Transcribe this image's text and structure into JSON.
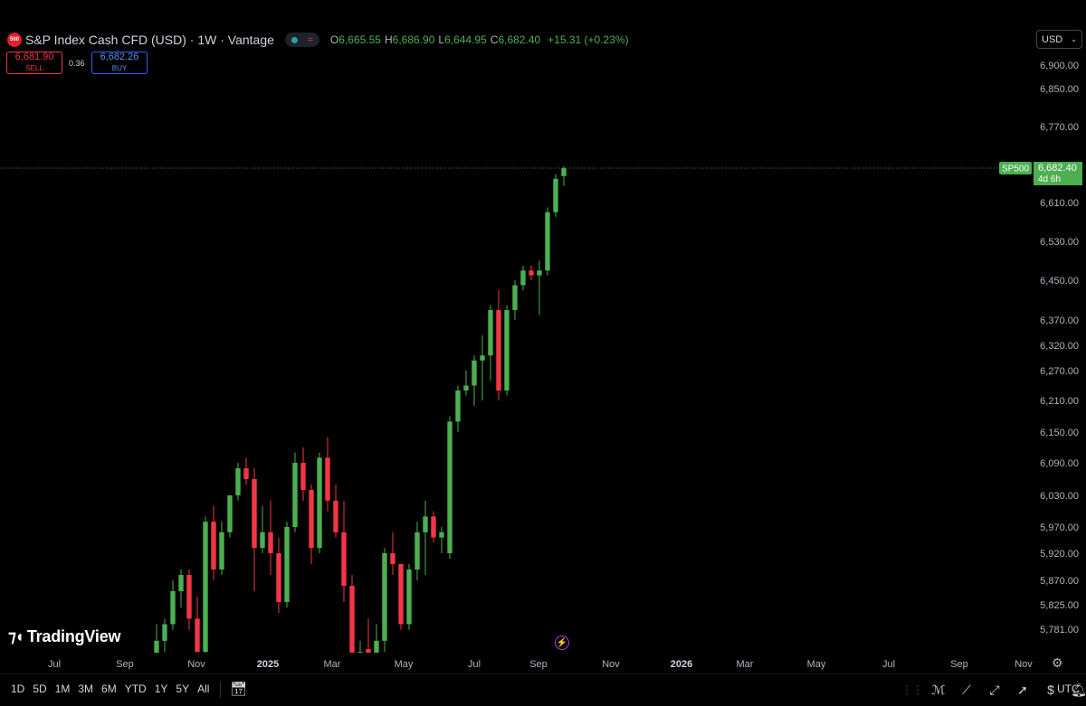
{
  "header": {
    "logo_text": "500",
    "title": "S&P Index Cash CFD (USD) · 1W · Vantage",
    "ohlc": {
      "o_label": "O",
      "o": "6,665.55",
      "h_label": "H",
      "h": "6,686.90",
      "l_label": "L",
      "l": "6,644.95",
      "c_label": "C",
      "c": "6,682.40",
      "change": "+15.31 (+0.23%)"
    }
  },
  "trade": {
    "sell_price": "6,681.90",
    "sell_label": "SELL",
    "spread": "0.36",
    "buy_price": "6,682.26",
    "buy_label": "BUY"
  },
  "currency": "USD",
  "price_label": {
    "symbol": "SP500",
    "price": "6,682.40",
    "countdown": "4d 6h"
  },
  "branding": "TradingView",
  "bottom": {
    "ranges": [
      "1D",
      "5D",
      "1M",
      "3M",
      "6M",
      "YTD",
      "1Y",
      "5Y",
      "All"
    ],
    "timezone": "UTC"
  },
  "icons": {
    "calendar": "calendar-range-icon",
    "bolt": "lightning-icon",
    "gear": "gear-icon",
    "tools": [
      "indicators-icon",
      "line-tool-icon",
      "ray-tool-icon",
      "cursor-icon",
      "dollar-price-icon",
      "bell-alert-icon"
    ]
  },
  "colors": {
    "up": "#4caf50",
    "down": "#f23645",
    "background": "#000000"
  },
  "chart_data": {
    "type": "candlestick",
    "x_ticks": [
      "Jul",
      "Sep",
      "Nov",
      "2025",
      "Mar",
      "May",
      "Jul",
      "Sep",
      "Nov",
      "2026",
      "Mar",
      "May",
      "Jul",
      "Sep",
      "Nov"
    ],
    "y_ticks": [
      "6,900.00",
      "6,850.00",
      "6,770.00",
      "6,610.00",
      "6,530.00",
      "6,450.00",
      "6,370.00",
      "6,320.00",
      "6,270.00",
      "6,210.00",
      "6,150.00",
      "6,090.00",
      "6,030.00",
      "5,970.00",
      "5,920.00",
      "5,870.00",
      "5,825.00",
      "5,781.00"
    ],
    "last_price": 6682.4,
    "candles": [
      {
        "o": 5720,
        "h": 5790,
        "l": 5700,
        "c": 5760
      },
      {
        "o": 5760,
        "h": 5800,
        "l": 5740,
        "c": 5790
      },
      {
        "o": 5790,
        "h": 5870,
        "l": 5780,
        "c": 5850
      },
      {
        "o": 5850,
        "h": 5890,
        "l": 5820,
        "c": 5880
      },
      {
        "o": 5880,
        "h": 5890,
        "l": 5780,
        "c": 5800
      },
      {
        "o": 5800,
        "h": 5840,
        "l": 5720,
        "c": 5740
      },
      {
        "o": 5740,
        "h": 5990,
        "l": 5730,
        "c": 5980
      },
      {
        "o": 5980,
        "h": 6010,
        "l": 5870,
        "c": 5890
      },
      {
        "o": 5890,
        "h": 5980,
        "l": 5880,
        "c": 5960
      },
      {
        "o": 5960,
        "h": 6030,
        "l": 5950,
        "c": 6030
      },
      {
        "o": 6030,
        "h": 6090,
        "l": 6020,
        "c": 6080
      },
      {
        "o": 6080,
        "h": 6100,
        "l": 6050,
        "c": 6060
      },
      {
        "o": 6060,
        "h": 6080,
        "l": 5850,
        "c": 5930
      },
      {
        "o": 5930,
        "h": 6010,
        "l": 5920,
        "c": 5960
      },
      {
        "o": 5960,
        "h": 6020,
        "l": 5880,
        "c": 5920
      },
      {
        "o": 5920,
        "h": 5950,
        "l": 5810,
        "c": 5830
      },
      {
        "o": 5830,
        "h": 5980,
        "l": 5820,
        "c": 5970
      },
      {
        "o": 5970,
        "h": 6110,
        "l": 5960,
        "c": 6090
      },
      {
        "o": 6090,
        "h": 6120,
        "l": 6020,
        "c": 6040
      },
      {
        "o": 6040,
        "h": 6050,
        "l": 5900,
        "c": 5930
      },
      {
        "o": 5930,
        "h": 6110,
        "l": 5920,
        "c": 6100
      },
      {
        "o": 6100,
        "h": 6140,
        "l": 6000,
        "c": 6020
      },
      {
        "o": 6020,
        "h": 6050,
        "l": 5950,
        "c": 5960
      },
      {
        "o": 5960,
        "h": 6020,
        "l": 5830,
        "c": 5860
      },
      {
        "o": 5860,
        "h": 5880,
        "l": 5720,
        "c": 5730
      },
      {
        "o": 5730,
        "h": 5760,
        "l": 5720,
        "c": 5740
      },
      {
        "o": 5745,
        "h": 5800,
        "l": 5720,
        "c": 5730
      },
      {
        "o": 5730,
        "h": 5790,
        "l": 5720,
        "c": 5760
      },
      {
        "o": 5760,
        "h": 5930,
        "l": 5740,
        "c": 5920
      },
      {
        "o": 5920,
        "h": 5960,
        "l": 5880,
        "c": 5900
      },
      {
        "o": 5900,
        "h": 5900,
        "l": 5780,
        "c": 5790
      },
      {
        "o": 5790,
        "h": 5900,
        "l": 5780,
        "c": 5890
      },
      {
        "o": 5890,
        "h": 5980,
        "l": 5870,
        "c": 5960
      },
      {
        "o": 5960,
        "h": 6020,
        "l": 5880,
        "c": 5990
      },
      {
        "o": 5990,
        "h": 6000,
        "l": 5940,
        "c": 5950
      },
      {
        "o": 5950,
        "h": 5970,
        "l": 5920,
        "c": 5960
      },
      {
        "o": 5920,
        "h": 6180,
        "l": 5910,
        "c": 6170
      },
      {
        "o": 6170,
        "h": 6240,
        "l": 6150,
        "c": 6230
      },
      {
        "o": 6230,
        "h": 6270,
        "l": 6220,
        "c": 6240
      },
      {
        "o": 6240,
        "h": 6300,
        "l": 6200,
        "c": 6290
      },
      {
        "o": 6290,
        "h": 6340,
        "l": 6210,
        "c": 6300
      },
      {
        "o": 6300,
        "h": 6400,
        "l": 6250,
        "c": 6390
      },
      {
        "o": 6390,
        "h": 6430,
        "l": 6210,
        "c": 6230
      },
      {
        "o": 6230,
        "h": 6400,
        "l": 6220,
        "c": 6390
      },
      {
        "o": 6390,
        "h": 6450,
        "l": 6370,
        "c": 6440
      },
      {
        "o": 6440,
        "h": 6480,
        "l": 6430,
        "c": 6470
      },
      {
        "o": 6470,
        "h": 6480,
        "l": 6450,
        "c": 6460
      },
      {
        "o": 6460,
        "h": 6490,
        "l": 6380,
        "c": 6470
      },
      {
        "o": 6470,
        "h": 6600,
        "l": 6460,
        "c": 6590
      },
      {
        "o": 6590,
        "h": 6670,
        "l": 6580,
        "c": 6660
      },
      {
        "o": 6665.55,
        "h": 6686.9,
        "l": 6644.95,
        "c": 6682.4
      }
    ]
  }
}
